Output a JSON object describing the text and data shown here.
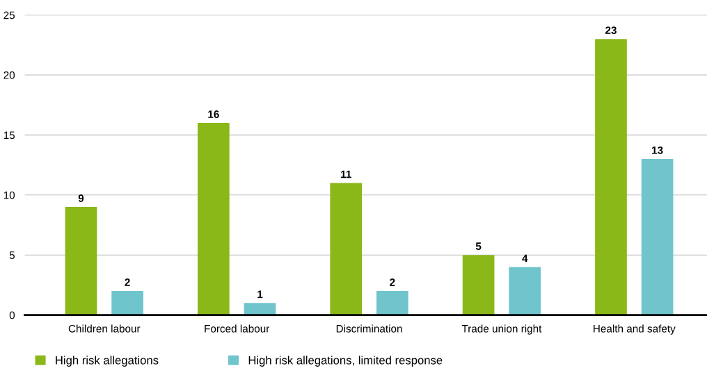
{
  "chart_data": {
    "type": "bar",
    "categories": [
      "Children labour",
      "Forced labour",
      "Discrimination",
      "Trade union right",
      "Health and safety"
    ],
    "series": [
      {
        "name": "High risk allegations",
        "color": "#8ab818",
        "values": [
          9,
          16,
          11,
          5,
          23
        ]
      },
      {
        "name": "High risk allegations, limited response",
        "color": "#70c5cc",
        "values": [
          2,
          1,
          2,
          4,
          13
        ]
      }
    ],
    "ylim": [
      0,
      25
    ],
    "yticks": [
      0,
      5,
      10,
      15,
      20,
      25
    ],
    "grid": "y",
    "legend": "bottom left",
    "data_labels": true
  }
}
